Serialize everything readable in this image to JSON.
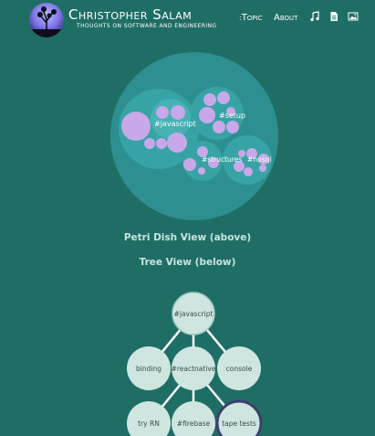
{
  "header": {
    "title": "Christopher Salam",
    "subtitle": "thoughts on software and engineering",
    "nav": {
      "topic": "Topic",
      "about": "About"
    },
    "icons": [
      "music-icon",
      "document-icon",
      "image-icon"
    ]
  },
  "bubble_chart": {
    "labels": [
      "#javascript",
      "#setup",
      "#structures",
      "#nosql"
    ]
  },
  "captions": {
    "petri": "Petri Dish View (above)",
    "tree": "Tree View (below)"
  },
  "tree": {
    "root": "#javascript",
    "level1": [
      "binding",
      "#reactnative",
      "console"
    ],
    "level2": [
      "try RN",
      "#firebase",
      "tape tests"
    ]
  },
  "colors": {
    "background": "#1f6e65",
    "bubble_outer": "#2e8f90",
    "bubble_leaf": "#c9a8ea",
    "tree_node": "#cfe6e0"
  }
}
